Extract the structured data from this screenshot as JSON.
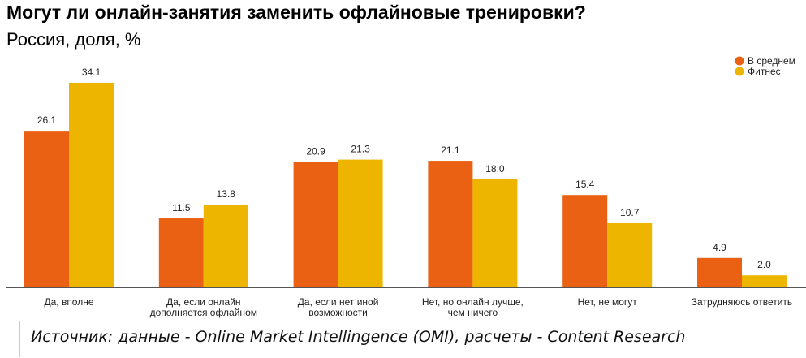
{
  "chart_data": {
    "type": "bar",
    "title": "Могут ли онлайн-занятия заменить офлайновые тренировки?",
    "subtitle": "Россия, доля, %",
    "categories": [
      [
        "Да, вполне"
      ],
      [
        "Да, если онлайн",
        "дополняется офлайном"
      ],
      [
        "Да, если нет иной",
        "возможности"
      ],
      [
        "Нет, но онлайн лучше,",
        "чем ничего"
      ],
      [
        "Нет, не могут"
      ],
      [
        "Затрудняюсь ответить"
      ]
    ],
    "series": [
      {
        "name": "В среднем",
        "color": "#EA6113",
        "values": [
          26.1,
          11.5,
          20.9,
          21.1,
          15.4,
          4.9
        ]
      },
      {
        "name": "Фитнес",
        "color": "#EDB400",
        "values": [
          34.1,
          13.8,
          21.3,
          18.0,
          10.7,
          2.0
        ]
      }
    ],
    "ylim": [
      0,
      34.1
    ],
    "legend": "top-right",
    "grid": false
  },
  "source": "Источник: данные - Online Market Intellingence (OMI), расчеты - Content Research"
}
